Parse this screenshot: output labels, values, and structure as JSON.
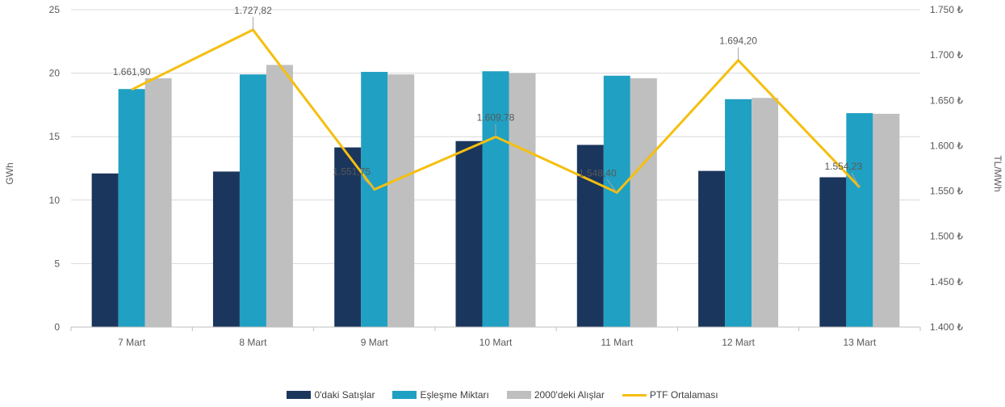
{
  "chart_data": {
    "type": "bar",
    "categories": [
      "7 Mart",
      "8 Mart",
      "9 Mart",
      "10 Mart",
      "11 Mart",
      "12 Mart",
      "13 Mart"
    ],
    "ylabel": "GWh",
    "ylabel_right": "TL/MWh",
    "ylim": [
      0,
      25
    ],
    "y_ticks": [
      "0",
      "5",
      "10",
      "15",
      "20",
      "25"
    ],
    "ylim_right": [
      1400,
      1750
    ],
    "y_right_ticks": [
      "1.400 ₺",
      "1.450 ₺",
      "1.500 ₺",
      "1.550 ₺",
      "1.600 ₺",
      "1.650 ₺",
      "1.700 ₺",
      "1.750 ₺"
    ],
    "series": [
      {
        "name": "0'daki Satışlar",
        "type": "bar",
        "axis": "left",
        "color": "#1b365d",
        "values": [
          12.1,
          12.25,
          14.15,
          14.65,
          14.35,
          12.3,
          11.8
        ]
      },
      {
        "name": "Eşleşme Miktarı",
        "type": "bar",
        "axis": "left",
        "color": "#20a0c2",
        "values": [
          18.75,
          19.9,
          20.1,
          20.15,
          19.8,
          17.95,
          16.85
        ]
      },
      {
        "name": "2000'deki Alışlar",
        "type": "bar",
        "axis": "left",
        "color": "#bfbfbf",
        "values": [
          19.6,
          20.65,
          19.9,
          20.0,
          19.6,
          18.05,
          16.8
        ]
      },
      {
        "name": "PTF Ortalaması",
        "type": "line",
        "axis": "right",
        "color": "#f5bf0f",
        "values": [
          1661.9,
          1727.82,
          1551.75,
          1609.78,
          1548.4,
          1694.2,
          1554.23
        ],
        "labels": [
          "1.661,90",
          "1.727,82",
          "1.551,75",
          "1.609,78",
          "1.548,40",
          "1.694,20",
          "1.554,23"
        ]
      }
    ],
    "legend_position": "bottom",
    "grid": true
  }
}
